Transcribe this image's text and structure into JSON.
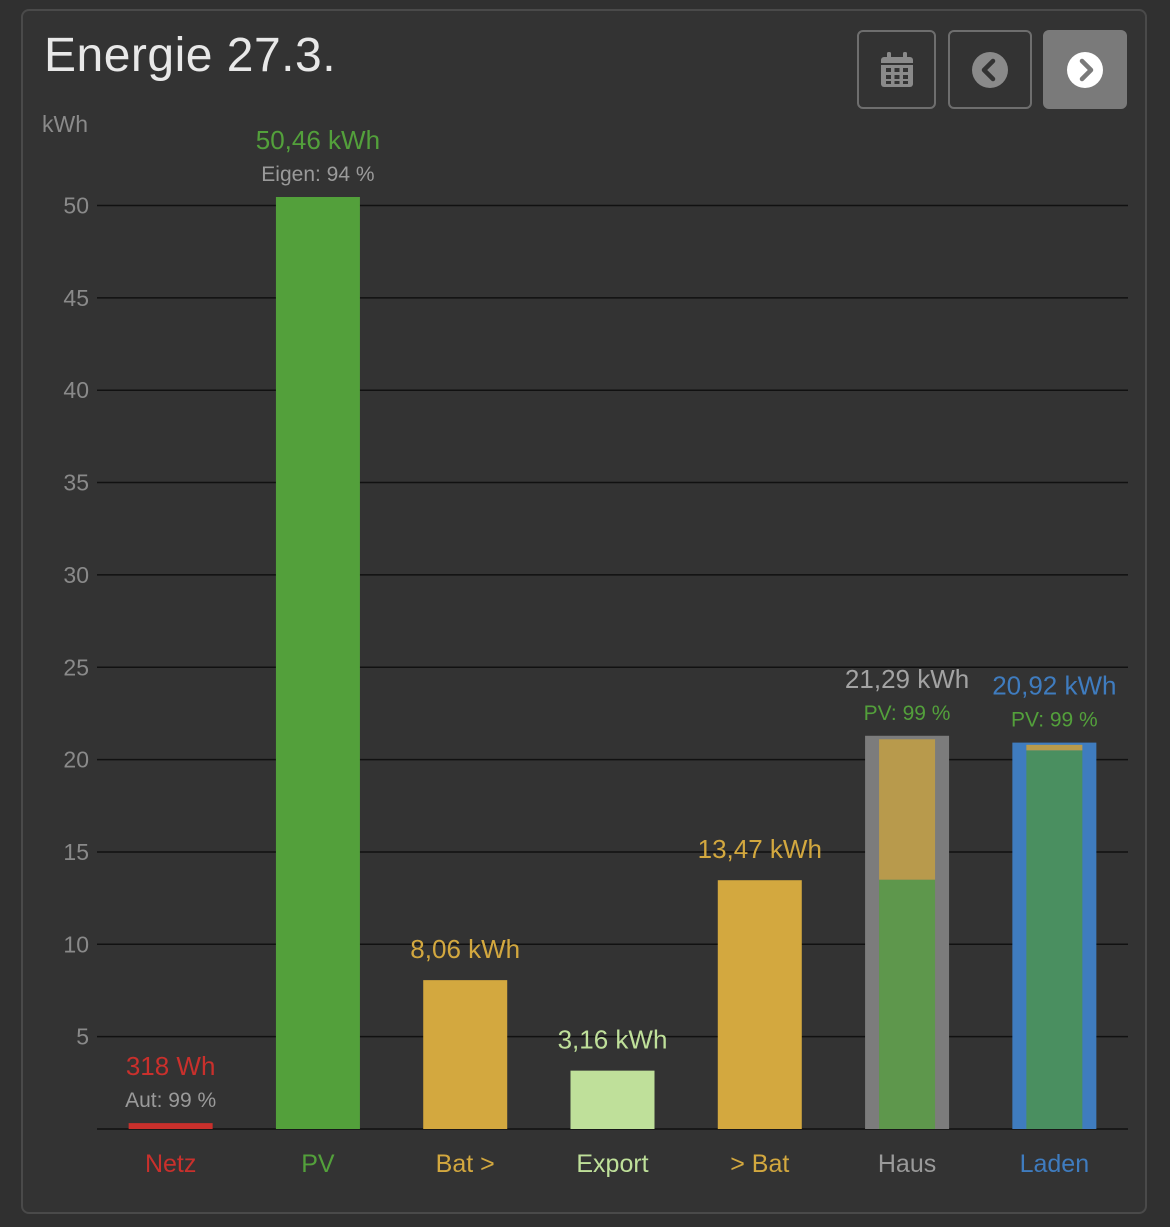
{
  "header": {
    "title": "Energie 27.3."
  },
  "toolbar": {
    "calendar_icon": "calendar-icon",
    "prev_icon": "chevron-left-icon",
    "next_icon": "chevron-right-icon"
  },
  "chart_data": {
    "type": "bar",
    "ylabel": "kWh",
    "ylim": [
      0,
      52
    ],
    "yticks": [
      5,
      10,
      15,
      20,
      25,
      30,
      35,
      40,
      45,
      50
    ],
    "grid": true,
    "categories": [
      "Netz",
      "PV",
      "Bat >",
      "Export",
      "> Bat",
      "Haus",
      "Laden"
    ],
    "bars": [
      {
        "category": "Netz",
        "value": 0.318,
        "label": "318 Wh",
        "sublabel": "Aut: 99 %",
        "color": "#c9302c",
        "label_color": "#c9302c",
        "sublabel_color": "#9a9a9a"
      },
      {
        "category": "PV",
        "value": 50.46,
        "label": "50,46 kWh",
        "sublabel": "Eigen: 94 %",
        "color": "#53a03b",
        "label_color": "#53a03b",
        "sublabel_color": "#9a9a9a"
      },
      {
        "category": "Bat >",
        "value": 8.06,
        "label": "8,06 kWh",
        "sublabel": "",
        "color": "#d3a83f",
        "label_color": "#d3a83f",
        "sublabel_color": "#9a9a9a"
      },
      {
        "category": "Export",
        "value": 3.16,
        "label": "3,16 kWh",
        "sublabel": "",
        "color": "#bfe09a",
        "label_color": "#bfe09a",
        "sublabel_color": "#9a9a9a"
      },
      {
        "category": "> Bat",
        "value": 13.47,
        "label": "13,47 kWh",
        "sublabel": "",
        "color": "#d3a83f",
        "label_color": "#d3a83f",
        "sublabel_color": "#9a9a9a"
      },
      {
        "category": "Haus",
        "value": 21.29,
        "label": "21,29 kWh",
        "sublabel": "PV: 99 %",
        "color": "#7c7c7c",
        "label_color": "#a3a3a3",
        "sublabel_color": "#53a03b",
        "inner": [
          {
            "value": 13.5,
            "color": "#5e974c"
          },
          {
            "value": 7.6,
            "color": "#b89a4c"
          }
        ]
      },
      {
        "category": "Laden",
        "value": 20.92,
        "label": "20,92 kWh",
        "sublabel": "PV: 99 %",
        "color": "#3f7cbf",
        "label_color": "#3f7cbf",
        "sublabel_color": "#53a03b",
        "inner": [
          {
            "value": 20.5,
            "color": "#4a8f60"
          },
          {
            "value": 0.3,
            "color": "#b89a4c"
          }
        ]
      }
    ],
    "category_colors": [
      "#c9302c",
      "#53a03b",
      "#d3a83f",
      "#bfe09a",
      "#d3a83f",
      "#9a9a9a",
      "#3f7cbf"
    ]
  }
}
